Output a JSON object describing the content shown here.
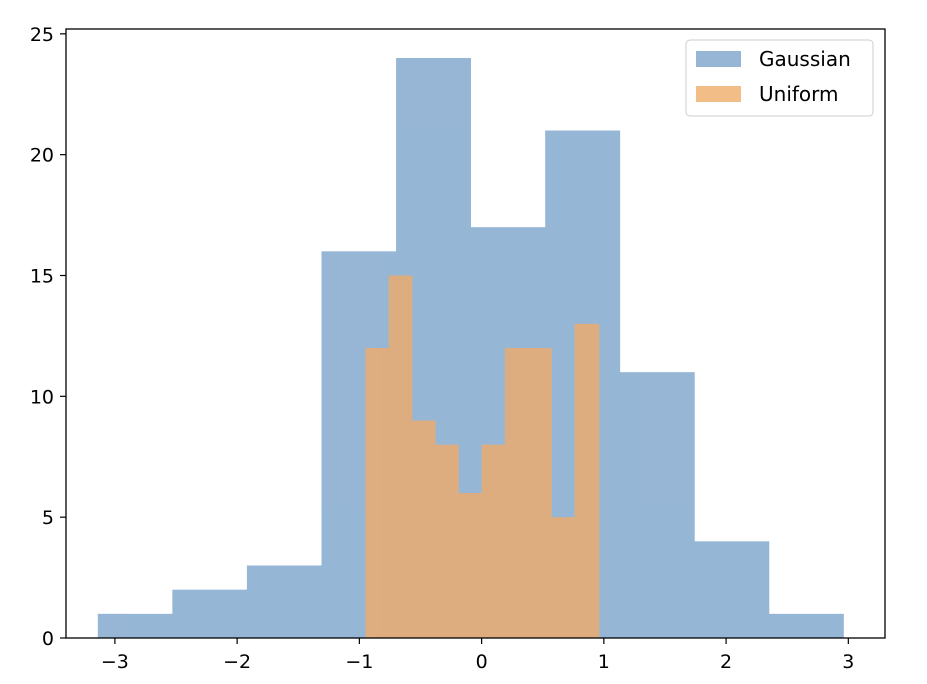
{
  "chart_data": {
    "type": "bar",
    "title": "",
    "xlabel": "",
    "ylabel": "",
    "xlim": [
      -3.4,
      3.3
    ],
    "ylim": [
      0,
      25.2
    ],
    "grid": false,
    "legend_position": "top-right",
    "xticks": [
      -3,
      -2,
      -1,
      0,
      1,
      2,
      3
    ],
    "xtick_labels": [
      "−3",
      "−2",
      "−1",
      "0",
      "1",
      "2",
      "3"
    ],
    "yticks": [
      0,
      5,
      10,
      15,
      20,
      25
    ],
    "ytick_labels": [
      "0",
      "5",
      "10",
      "15",
      "20",
      "25"
    ],
    "series": [
      {
        "name": "Gaussian",
        "color": "#7da4cc",
        "bin_edges": [
          -3.14,
          -2.53,
          -1.92,
          -1.31,
          -0.7,
          -0.09,
          0.52,
          1.13,
          1.74,
          2.35,
          2.96
        ],
        "counts": [
          1,
          2,
          3,
          16,
          24,
          17,
          21,
          11,
          4,
          1
        ]
      },
      {
        "name": "Uniform",
        "color": "#f0ac6a",
        "bin_edges": [
          -0.95,
          -0.76,
          -0.57,
          -0.38,
          -0.19,
          0.0,
          0.19,
          0.38,
          0.57,
          0.76,
          0.96
        ],
        "counts": [
          12,
          15,
          9,
          8,
          6,
          8,
          12,
          12,
          5,
          13
        ]
      }
    ]
  }
}
